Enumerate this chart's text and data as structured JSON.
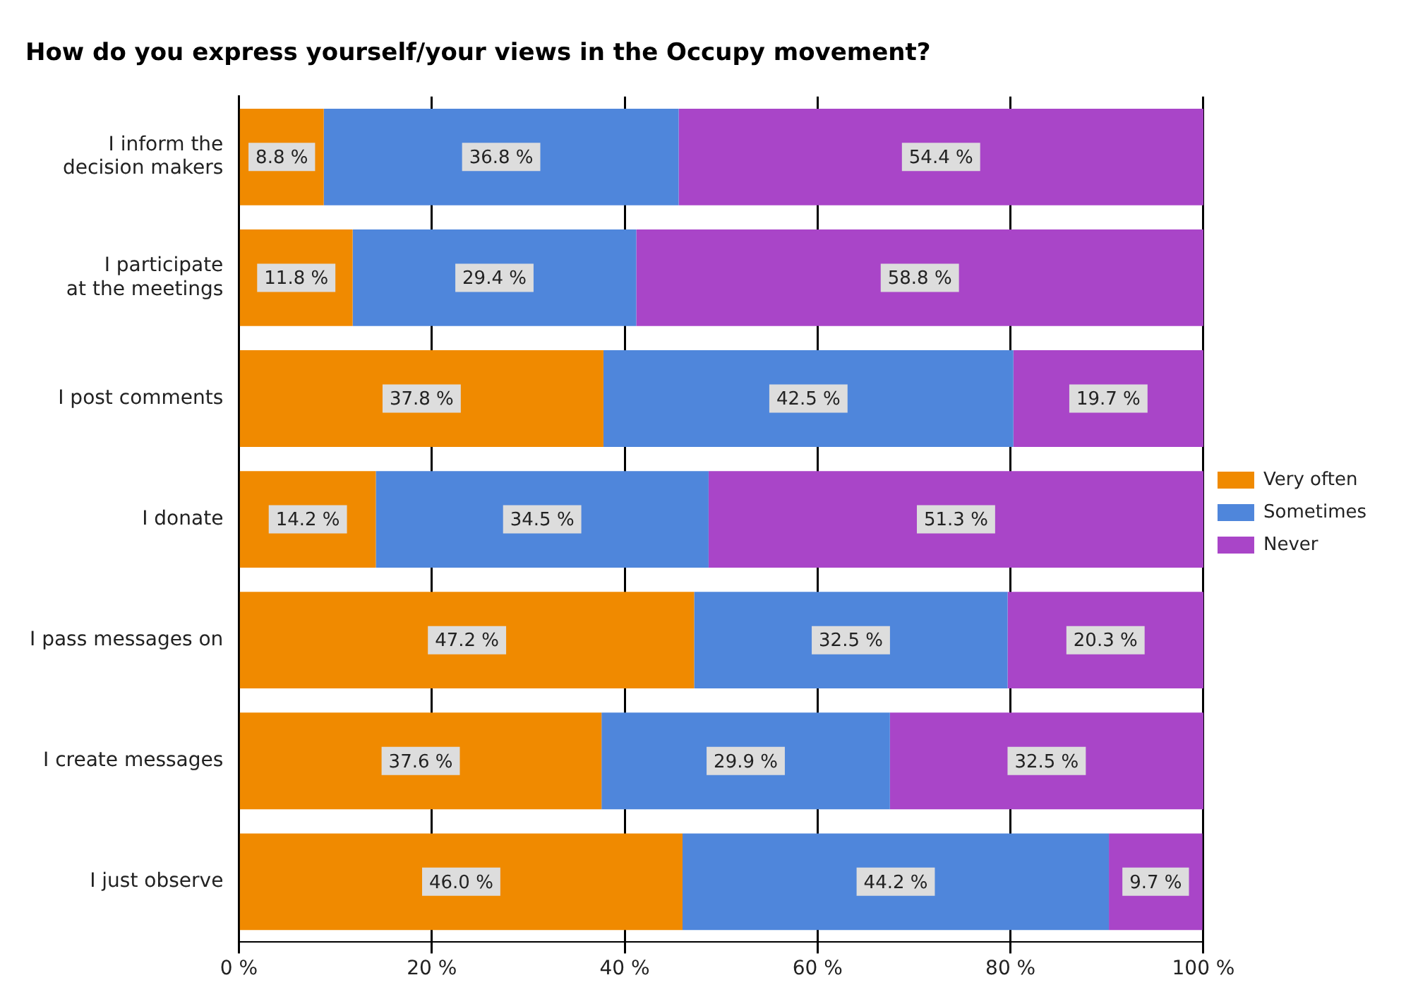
{
  "chart_data": {
    "type": "bar",
    "orientation": "horizontal",
    "stacked": true,
    "title": "How do you express yourself/your views in the Occupy movement?",
    "categories": [
      "I inform the\ndecision makers",
      "I participate\nat the meetings",
      "I post comments",
      "I donate",
      "I pass messages on",
      "I create messages",
      "I just observe"
    ],
    "series": [
      {
        "name": "Very often",
        "color": "#f08a00",
        "values": [
          8.8,
          11.8,
          37.8,
          14.2,
          47.2,
          37.6,
          46.0
        ],
        "value_labels": [
          "8.8 %",
          "11.8 %",
          "37.8 %",
          "14.2 %",
          "47.2 %",
          "37.6 %",
          "46.0 %"
        ]
      },
      {
        "name": "Sometimes",
        "color": "#4f86db",
        "values": [
          36.8,
          29.4,
          42.5,
          34.5,
          32.5,
          29.9,
          44.2
        ],
        "value_labels": [
          "36.8 %",
          "29.4 %",
          "42.5 %",
          "34.5 %",
          "32.5 %",
          "29.9 %",
          "44.2 %"
        ]
      },
      {
        "name": "Never",
        "color": "#a945c8",
        "values": [
          54.4,
          58.8,
          19.7,
          51.3,
          20.3,
          32.5,
          9.7
        ],
        "value_labels": [
          "54.4 %",
          "58.8 %",
          "19.7 %",
          "51.3 %",
          "20.3 %",
          "32.5 %",
          "9.7 %"
        ]
      }
    ],
    "xlim": [
      0,
      100
    ],
    "xticks": [
      {
        "value": 0,
        "label": "0 %"
      },
      {
        "value": 20,
        "label": "20 %"
      },
      {
        "value": 40,
        "label": "40 %"
      },
      {
        "value": 60,
        "label": "60 %"
      },
      {
        "value": 80,
        "label": "80 %"
      },
      {
        "value": 100,
        "label": "100 %"
      }
    ],
    "grid": "x",
    "legend": "right"
  }
}
